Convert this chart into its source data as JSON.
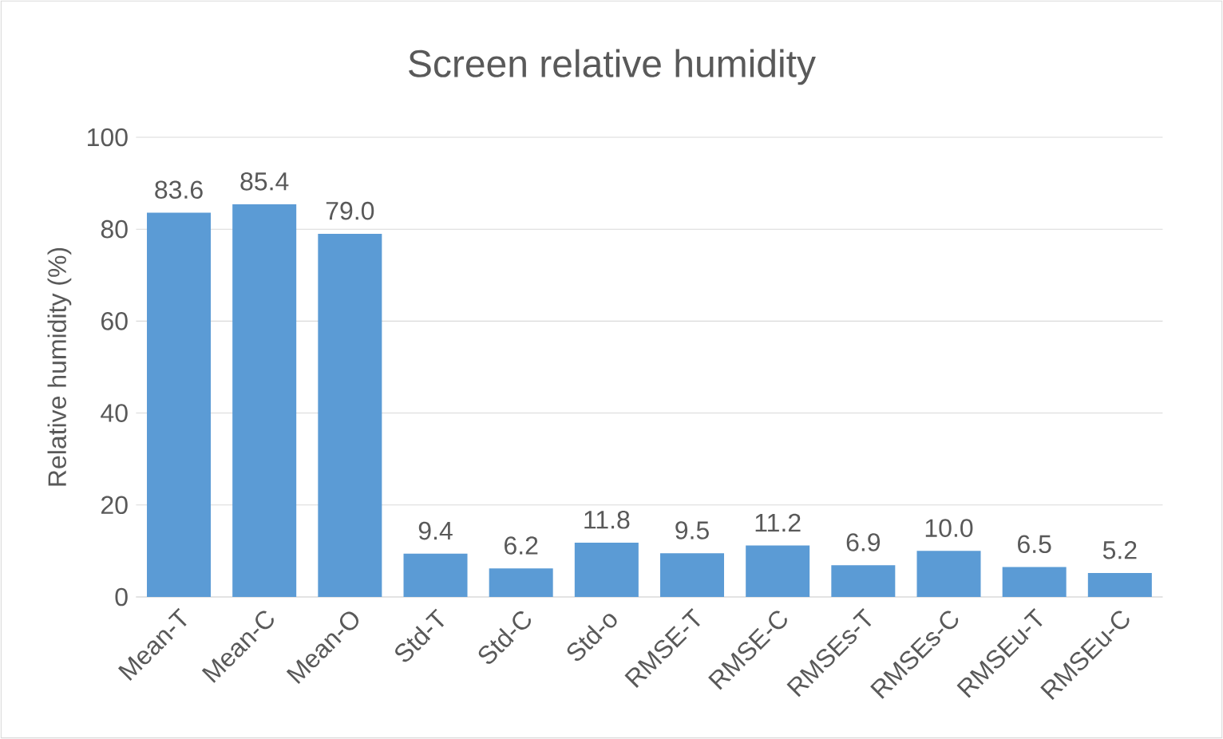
{
  "chart_data": {
    "type": "bar",
    "title": "Screen relative humidity",
    "ylabel": "Relative humidity (%)",
    "categories": [
      "Mean-T",
      "Mean-C",
      "Mean-O",
      "Std-T",
      "Std-C",
      "Std-o",
      "RMSE-T",
      "RMSE-C",
      "RMSEs-T",
      "RMSEs-C",
      "RMSEu-T",
      "RMSEu-C"
    ],
    "values": [
      83.6,
      85.4,
      79.0,
      9.4,
      6.2,
      11.8,
      9.5,
      11.2,
      6.9,
      10.0,
      6.5,
      5.2
    ],
    "value_labels": [
      "83.6",
      "85.4",
      "79.0",
      "9.4",
      "6.2",
      "11.8",
      "9.5",
      "11.2",
      "6.9",
      "10.0",
      "6.5",
      "5.2"
    ],
    "color": "#5b9bd5",
    "ylim": [
      0,
      100
    ],
    "yticks": [
      0,
      20,
      40,
      60,
      80,
      100
    ],
    "grid": "y"
  }
}
